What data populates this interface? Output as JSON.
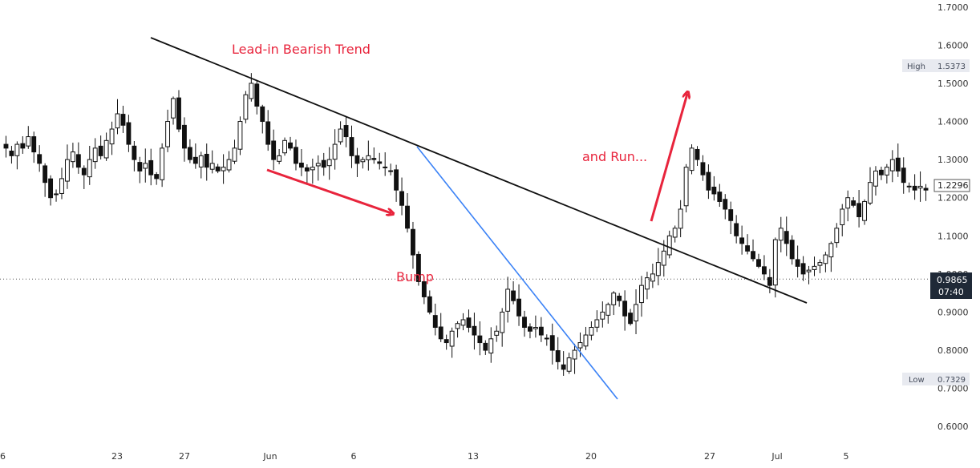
{
  "chart_data": {
    "type": "candlestick",
    "y_axis": {
      "range": [
        0.59,
        1.71
      ],
      "ticks": [
        "0.6000",
        "0.7000",
        "0.8000",
        "0.9000",
        "1.0000",
        "1.1000",
        "1.2000",
        "1.3000",
        "1.4000",
        "1.5000",
        "1.6000",
        "1.7000"
      ]
    },
    "x_axis": {
      "tick_labels": [
        "6",
        "23",
        "27",
        "Jun",
        "6",
        "13",
        "20",
        "27",
        "Jul",
        "5"
      ]
    },
    "grid": false,
    "series": [
      {
        "close_path": [
          1.33,
          1.31,
          1.34,
          1.33,
          1.36,
          1.32,
          1.29,
          1.24,
          1.2,
          1.21,
          1.25,
          1.3,
          1.32,
          1.28,
          1.26,
          1.3,
          1.33,
          1.31,
          1.35,
          1.38,
          1.42,
          1.39,
          1.34,
          1.3,
          1.27,
          1.29,
          1.26,
          1.25,
          1.33,
          1.4,
          1.46,
          1.38,
          1.33,
          1.3,
          1.29,
          1.31,
          1.28,
          1.29,
          1.27,
          1.28,
          1.3,
          1.33,
          1.4,
          1.47,
          1.5,
          1.44,
          1.4,
          1.34,
          1.3,
          1.31,
          1.35,
          1.33,
          1.29,
          1.28,
          1.27,
          1.28,
          1.29,
          1.28,
          1.3,
          1.34,
          1.38,
          1.36,
          1.31,
          1.29,
          1.3,
          1.31,
          1.3,
          1.29,
          1.28,
          1.27,
          1.22,
          1.18,
          1.12,
          1.05,
          0.98,
          0.94,
          0.9,
          0.86,
          0.83,
          0.82,
          0.85,
          0.87,
          0.88,
          0.86,
          0.84,
          0.82,
          0.8,
          0.83,
          0.85,
          0.9,
          0.96,
          0.93,
          0.89,
          0.86,
          0.85,
          0.86,
          0.84,
          0.83,
          0.8,
          0.77,
          0.75,
          0.78,
          0.8,
          0.82,
          0.84,
          0.86,
          0.88,
          0.9,
          0.92,
          0.95,
          0.93,
          0.89,
          0.87,
          0.92,
          0.97,
          0.99,
          1.0,
          1.03,
          1.06,
          1.1,
          1.12,
          1.17,
          1.28,
          1.33,
          1.3,
          1.26,
          1.22,
          1.21,
          1.19,
          1.17,
          1.14,
          1.1,
          1.08,
          1.06,
          1.04,
          1.02,
          1.0,
          0.97,
          1.09,
          1.12,
          1.08,
          1.04,
          1.02,
          1.0,
          1.01,
          1.02,
          1.03,
          1.05,
          1.08,
          1.12,
          1.17,
          1.2,
          1.18,
          1.15,
          1.19,
          1.24,
          1.27,
          1.26,
          1.28,
          1.3,
          1.27,
          1.24,
          1.23,
          1.22,
          1.23,
          1.22
        ]
      }
    ],
    "trendlines": [
      {
        "name": "lead-in-trendline",
        "color": "#111111"
      },
      {
        "name": "bump-trendline",
        "color": "#3b82f6"
      }
    ],
    "annotations": {
      "lead_in": "Lead-in Bearish Trend",
      "bump": "Bump",
      "run": "and Run..."
    },
    "high": {
      "label": "High",
      "value": "1.5373"
    },
    "low": {
      "label": "Low",
      "value": "0.7329"
    },
    "last_value": "1.2296",
    "current_price": {
      "value": "0.9865",
      "countdown": "07:40"
    },
    "colors": {
      "candle": "#111111",
      "arrow": "#e8243c",
      "annotation_text": "#e8243c",
      "trend_black": "#111111",
      "trend_blue": "#3b82f6",
      "price_tag_bg": "#1f2937",
      "hl_bg": "#e8eaf0"
    }
  }
}
